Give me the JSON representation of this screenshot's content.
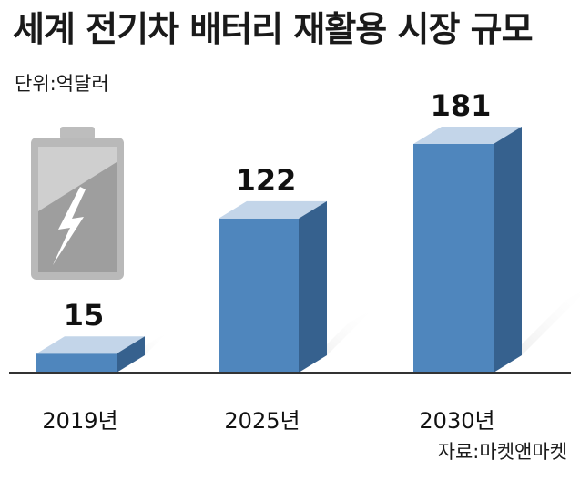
{
  "header": {
    "title": "세계 전기차 배터리 재활용 시장 규모",
    "unit": "단위:억달러"
  },
  "footer": {
    "source": "자료:마켓앤마켓"
  },
  "colors": {
    "front": "#4f86bd",
    "top": "#c3d5e9",
    "side": "#36618e",
    "baseline": "#333333",
    "battery": "#b7b7b7"
  },
  "icons": [
    "battery-lightning-icon"
  ],
  "chart_data": {
    "type": "bar",
    "title": "세계 전기차 배터리 재활용 시장 규모",
    "unit": "억달러",
    "categories": [
      "2019년",
      "2025년",
      "2030년"
    ],
    "values": [
      15,
      122,
      181
    ],
    "ylim": [
      0,
      181
    ],
    "grid": false
  }
}
